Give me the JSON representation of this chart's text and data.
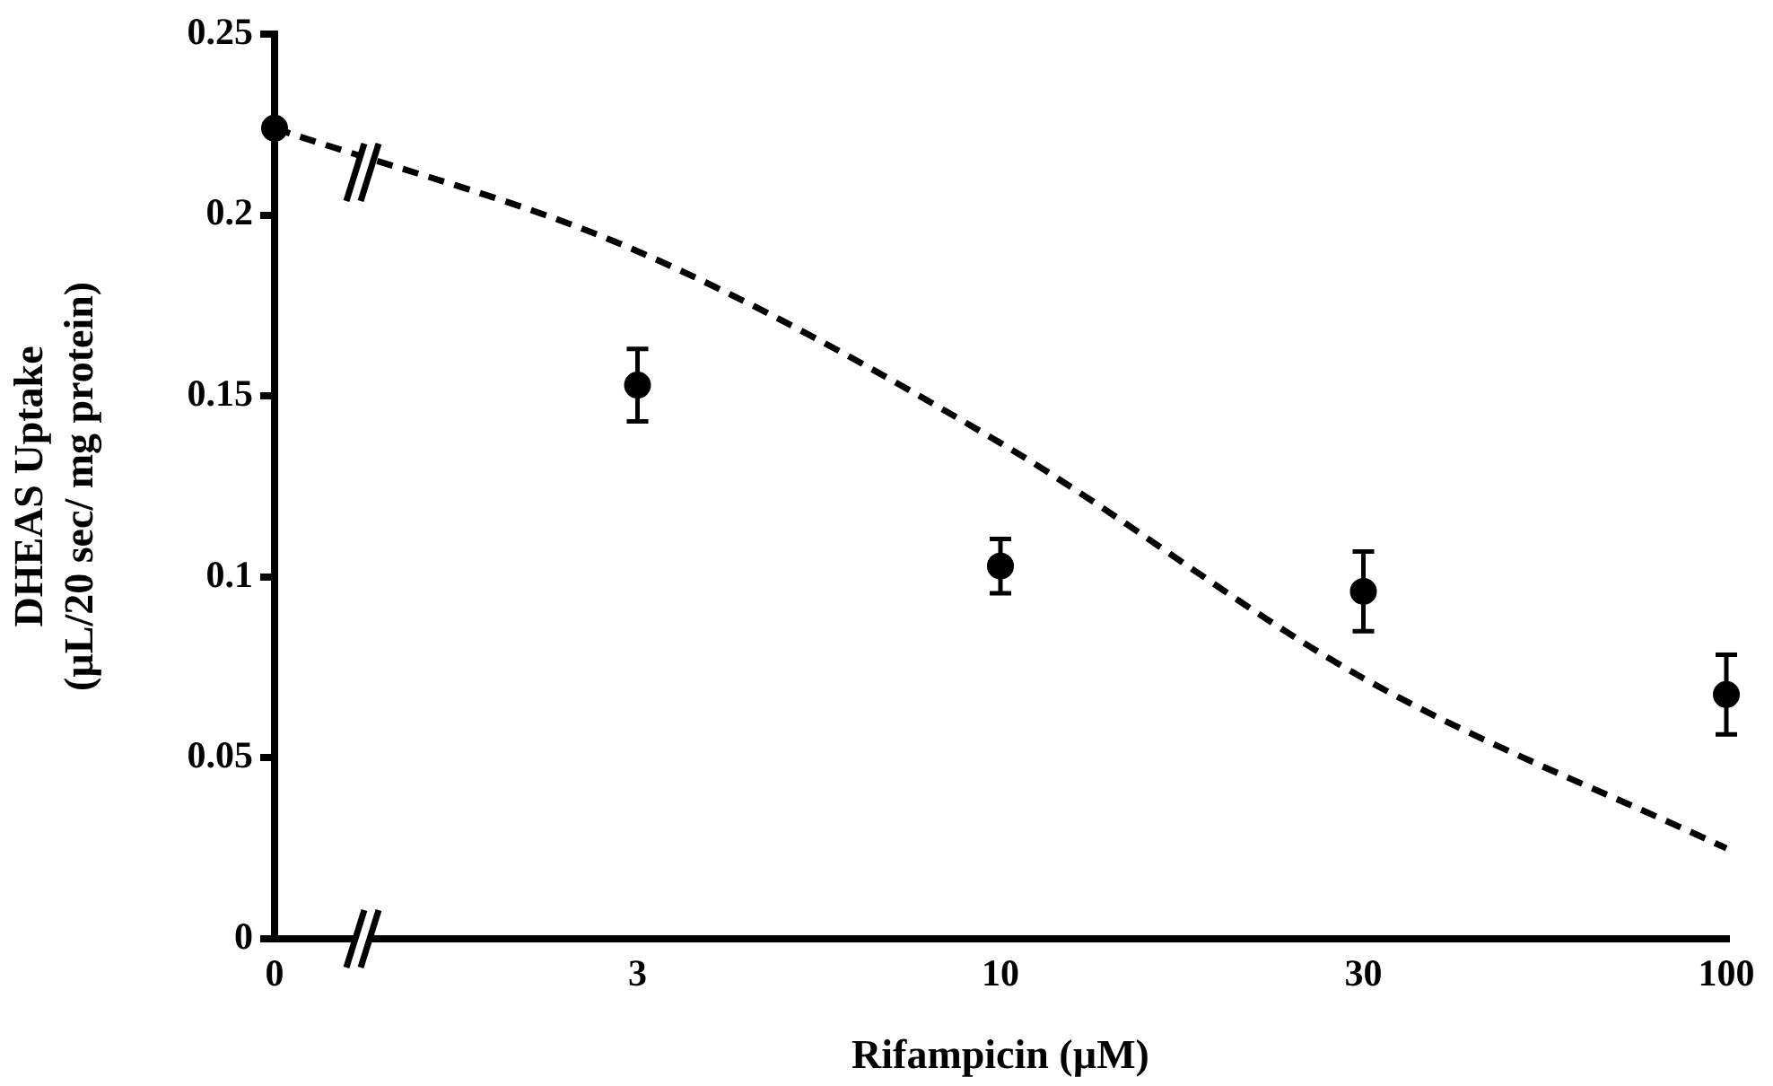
{
  "chart_data": {
    "type": "scatter",
    "xlabel": "Rifampicin (µM)",
    "ylabel": "DHEAS Uptake\n(µL/20 sec/ mg protein)",
    "categories": [
      "0",
      "3",
      "10",
      "30",
      "100"
    ],
    "ylim": [
      0,
      0.25
    ],
    "yticks": [
      0,
      0.05,
      0.1,
      0.15,
      0.2,
      0.25
    ],
    "grid": false,
    "legend": false,
    "series": [
      {
        "color": "#000000",
        "marker": "circle",
        "values": [
          0.224,
          0.153,
          0.103,
          0.096,
          0.0675
        ],
        "errors": [
          null,
          0.01,
          0.0075,
          0.011,
          0.011
        ]
      },
      {
        "type": "line",
        "color": "#000000",
        "marker": "none",
        "line_style": "dashed",
        "values": [
          0.224,
          0.19,
          0.137,
          0.072,
          0.025
        ]
      }
    ]
  }
}
